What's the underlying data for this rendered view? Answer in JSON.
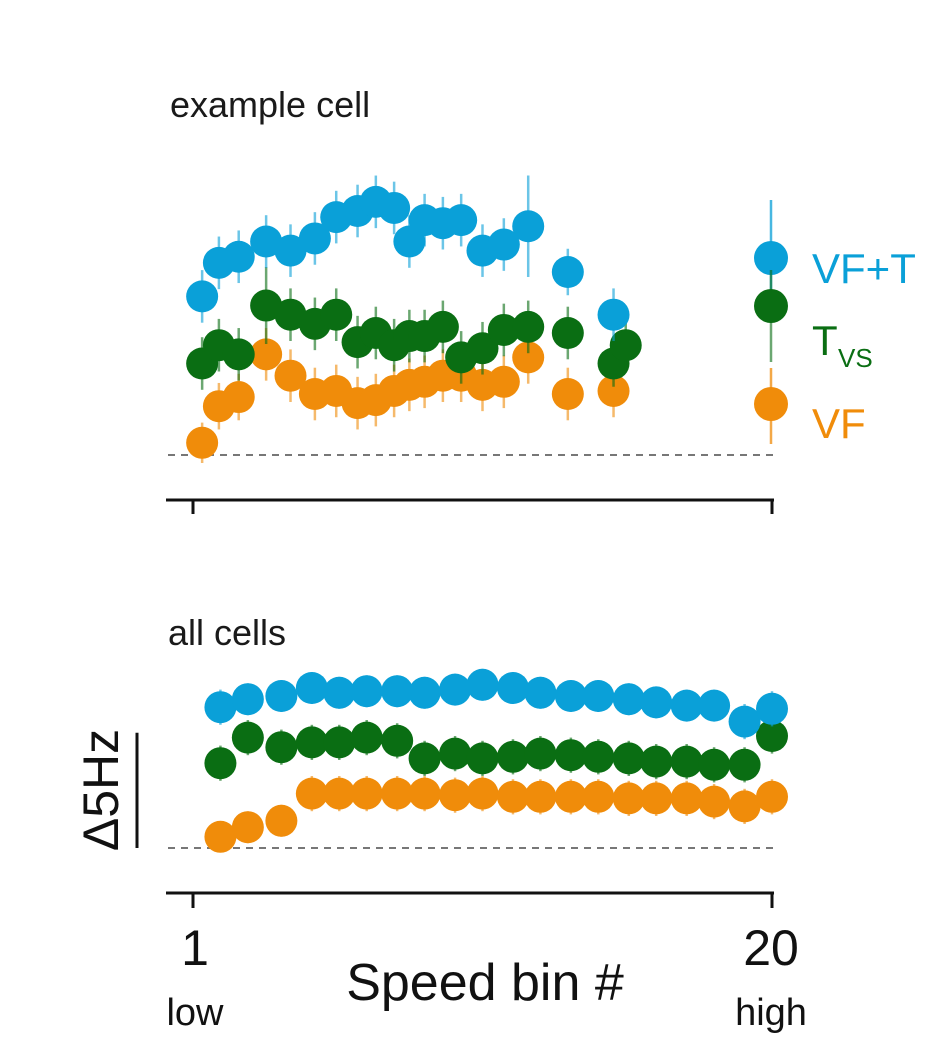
{
  "chart_data": [
    {
      "type": "scatter",
      "title": "example cell",
      "xlabel": "",
      "ylabel": "",
      "xlim": [
        1,
        20
      ],
      "ylim": [
        0,
        10
      ],
      "grid": false,
      "baseline": 0,
      "series": [
        {
          "name": "VF+T",
          "color": "#0aa0d8",
          "points": [
            {
              "x": 1.3,
              "y": 5.2,
              "err": 0.6
            },
            {
              "x": 1.85,
              "y": 6.3,
              "err": 0.6
            },
            {
              "x": 2.5,
              "y": 6.5,
              "err": 0.6
            },
            {
              "x": 3.4,
              "y": 7.0,
              "err": 0.6
            },
            {
              "x": 4.2,
              "y": 6.7,
              "err": 0.6
            },
            {
              "x": 5.0,
              "y": 7.1,
              "err": 0.6
            },
            {
              "x": 5.7,
              "y": 7.8,
              "err": 0.6
            },
            {
              "x": 6.4,
              "y": 8.0,
              "err": 0.6
            },
            {
              "x": 7.0,
              "y": 8.3,
              "err": 0.6
            },
            {
              "x": 7.6,
              "y": 8.1,
              "err": 0.6
            },
            {
              "x": 8.1,
              "y": 7.0,
              "err": 0.6
            },
            {
              "x": 8.6,
              "y": 7.7,
              "err": 0.6
            },
            {
              "x": 9.2,
              "y": 7.6,
              "err": 0.6
            },
            {
              "x": 9.8,
              "y": 7.7,
              "err": 0.6
            },
            {
              "x": 10.5,
              "y": 6.7,
              "err": 0.6
            },
            {
              "x": 11.2,
              "y": 6.9,
              "err": 0.6
            },
            {
              "x": 12.0,
              "y": 7.5,
              "err": 1.4
            },
            {
              "x": 13.3,
              "y": 6.0,
              "err": 0.5
            },
            {
              "x": 14.8,
              "y": 4.6,
              "err": 0.6
            }
          ]
        },
        {
          "name": "T",
          "name_sub": "VS",
          "color": "#0a6e13",
          "points": [
            {
              "x": 1.3,
              "y": 3.0,
              "err": 0.6
            },
            {
              "x": 1.85,
              "y": 3.6,
              "err": 0.6
            },
            {
              "x": 2.5,
              "y": 3.3,
              "err": 0.6
            },
            {
              "x": 3.4,
              "y": 4.9,
              "err": 1.0
            },
            {
              "x": 4.2,
              "y": 4.6,
              "err": 0.6
            },
            {
              "x": 5.0,
              "y": 4.3,
              "err": 0.6
            },
            {
              "x": 5.7,
              "y": 4.6,
              "err": 0.6
            },
            {
              "x": 6.4,
              "y": 3.7,
              "err": 0.6
            },
            {
              "x": 7.0,
              "y": 4.0,
              "err": 0.6
            },
            {
              "x": 7.6,
              "y": 3.6,
              "err": 0.6
            },
            {
              "x": 8.1,
              "y": 3.9,
              "err": 0.6
            },
            {
              "x": 8.6,
              "y": 3.9,
              "err": 0.6
            },
            {
              "x": 9.2,
              "y": 4.2,
              "err": 0.6
            },
            {
              "x": 9.8,
              "y": 3.2,
              "err": 0.6
            },
            {
              "x": 10.5,
              "y": 3.5,
              "err": 0.6
            },
            {
              "x": 11.2,
              "y": 4.1,
              "err": 0.6
            },
            {
              "x": 12.0,
              "y": 4.2,
              "err": 0.6
            },
            {
              "x": 13.3,
              "y": 4.0,
              "err": 0.6
            },
            {
              "x": 14.8,
              "y": 3.0,
              "err": 0.5
            },
            {
              "x": 15.2,
              "y": 3.6,
              "err": 0.6
            }
          ]
        },
        {
          "name": "VF",
          "color": "#f08c0a",
          "points": [
            {
              "x": 1.3,
              "y": 0.4,
              "err": 0.4
            },
            {
              "x": 1.85,
              "y": 1.6,
              "err": 0.5
            },
            {
              "x": 2.5,
              "y": 1.9,
              "err": 0.5
            },
            {
              "x": 3.4,
              "y": 3.3,
              "err": 0.6
            },
            {
              "x": 4.2,
              "y": 2.6,
              "err": 0.6
            },
            {
              "x": 5.0,
              "y": 2.0,
              "err": 0.6
            },
            {
              "x": 5.7,
              "y": 2.1,
              "err": 0.6
            },
            {
              "x": 6.4,
              "y": 1.7,
              "err": 0.6
            },
            {
              "x": 7.0,
              "y": 1.8,
              "err": 0.6
            },
            {
              "x": 7.6,
              "y": 2.1,
              "err": 0.6
            },
            {
              "x": 8.1,
              "y": 2.3,
              "err": 0.6
            },
            {
              "x": 8.6,
              "y": 2.4,
              "err": 0.6
            },
            {
              "x": 9.2,
              "y": 2.6,
              "err": 0.6
            },
            {
              "x": 9.8,
              "y": 2.6,
              "err": 0.6
            },
            {
              "x": 10.5,
              "y": 2.3,
              "err": 0.6
            },
            {
              "x": 11.2,
              "y": 2.4,
              "err": 0.6
            },
            {
              "x": 12.0,
              "y": 3.2,
              "err": 0.6
            },
            {
              "x": 13.3,
              "y": 2.0,
              "err": 0.6
            },
            {
              "x": 14.8,
              "y": 2.1,
              "err": 0.6
            }
          ]
        }
      ],
      "legend": {
        "placement": "right",
        "items": [
          {
            "label": "VF+T",
            "sub": "",
            "color": "#0aa0d8"
          },
          {
            "label": "T",
            "sub": "VS",
            "color": "#0a6e13"
          },
          {
            "label": "VF",
            "sub": "",
            "color": "#f08c0a"
          }
        ]
      }
    },
    {
      "type": "scatter",
      "title": "all cells",
      "xlabel": "Speed bin #",
      "ylabel": "",
      "xlim": [
        1,
        20
      ],
      "ylim": [
        0,
        10
      ],
      "grid": false,
      "baseline": 0,
      "scale_bar": {
        "label": "Δ5Hz",
        "value": 7.2
      },
      "x_ticks": [
        {
          "value": 1,
          "label": "1",
          "sublabel": "low"
        },
        {
          "value": 20,
          "label": "20",
          "sublabel": "high"
        }
      ],
      "series": [
        {
          "name": "VF+T",
          "color": "#0aa0d8",
          "points": [
            {
              "x": 1.9,
              "y": 8.8,
              "err": 0.6
            },
            {
              "x": 2.8,
              "y": 9.3,
              "err": 0.5
            },
            {
              "x": 3.9,
              "y": 9.5,
              "err": 0.5
            },
            {
              "x": 4.9,
              "y": 10.0,
              "err": 0.5
            },
            {
              "x": 5.8,
              "y": 9.7,
              "err": 0.5
            },
            {
              "x": 6.7,
              "y": 9.8,
              "err": 0.5
            },
            {
              "x": 7.7,
              "y": 9.8,
              "err": 0.5
            },
            {
              "x": 8.6,
              "y": 9.7,
              "err": 0.5
            },
            {
              "x": 9.6,
              "y": 9.9,
              "err": 0.5
            },
            {
              "x": 10.5,
              "y": 10.2,
              "err": 0.5
            },
            {
              "x": 11.5,
              "y": 10.0,
              "err": 0.5
            },
            {
              "x": 12.4,
              "y": 9.7,
              "err": 0.5
            },
            {
              "x": 13.4,
              "y": 9.5,
              "err": 0.5
            },
            {
              "x": 14.3,
              "y": 9.5,
              "err": 0.5
            },
            {
              "x": 15.3,
              "y": 9.3,
              "err": 0.5
            },
            {
              "x": 16.2,
              "y": 9.1,
              "err": 0.5
            },
            {
              "x": 17.2,
              "y": 8.9,
              "err": 0.5
            },
            {
              "x": 18.1,
              "y": 8.9,
              "err": 0.5
            },
            {
              "x": 19.1,
              "y": 7.9,
              "err": 0.6
            },
            {
              "x": 20.0,
              "y": 8.7,
              "err": 0.6
            }
          ]
        },
        {
          "name": "T",
          "name_sub": "VS",
          "color": "#0a6e13",
          "points": [
            {
              "x": 1.9,
              "y": 5.3,
              "err": 0.6
            },
            {
              "x": 2.8,
              "y": 6.9,
              "err": 0.6
            },
            {
              "x": 3.9,
              "y": 6.3,
              "err": 0.6
            },
            {
              "x": 4.9,
              "y": 6.6,
              "err": 0.6
            },
            {
              "x": 5.8,
              "y": 6.6,
              "err": 0.6
            },
            {
              "x": 6.7,
              "y": 6.9,
              "err": 0.6
            },
            {
              "x": 7.7,
              "y": 6.7,
              "err": 0.6
            },
            {
              "x": 8.6,
              "y": 5.6,
              "err": 0.6
            },
            {
              "x": 9.6,
              "y": 5.9,
              "err": 0.6
            },
            {
              "x": 10.5,
              "y": 5.6,
              "err": 0.6
            },
            {
              "x": 11.5,
              "y": 5.7,
              "err": 0.6
            },
            {
              "x": 12.4,
              "y": 5.9,
              "err": 0.6
            },
            {
              "x": 13.4,
              "y": 5.8,
              "err": 0.6
            },
            {
              "x": 14.3,
              "y": 5.7,
              "err": 0.6
            },
            {
              "x": 15.3,
              "y": 5.6,
              "err": 0.6
            },
            {
              "x": 16.2,
              "y": 5.4,
              "err": 0.6
            },
            {
              "x": 17.2,
              "y": 5.4,
              "err": 0.6
            },
            {
              "x": 18.1,
              "y": 5.2,
              "err": 0.6
            },
            {
              "x": 19.1,
              "y": 5.2,
              "err": 0.6
            },
            {
              "x": 20.0,
              "y": 7.0,
              "err": 0.6
            }
          ]
        },
        {
          "name": "VF",
          "color": "#f08c0a",
          "points": [
            {
              "x": 1.9,
              "y": 0.7,
              "err": 0.4
            },
            {
              "x": 2.8,
              "y": 1.3,
              "err": 0.5
            },
            {
              "x": 3.9,
              "y": 1.7,
              "err": 0.5
            },
            {
              "x": 4.9,
              "y": 3.4,
              "err": 0.6
            },
            {
              "x": 5.8,
              "y": 3.4,
              "err": 0.6
            },
            {
              "x": 6.7,
              "y": 3.4,
              "err": 0.6
            },
            {
              "x": 7.7,
              "y": 3.4,
              "err": 0.6
            },
            {
              "x": 8.6,
              "y": 3.4,
              "err": 0.6
            },
            {
              "x": 9.6,
              "y": 3.3,
              "err": 0.6
            },
            {
              "x": 10.5,
              "y": 3.4,
              "err": 0.6
            },
            {
              "x": 11.5,
              "y": 3.2,
              "err": 0.6
            },
            {
              "x": 12.4,
              "y": 3.2,
              "err": 0.6
            },
            {
              "x": 13.4,
              "y": 3.2,
              "err": 0.6
            },
            {
              "x": 14.3,
              "y": 3.2,
              "err": 0.6
            },
            {
              "x": 15.3,
              "y": 3.1,
              "err": 0.6
            },
            {
              "x": 16.2,
              "y": 3.1,
              "err": 0.6
            },
            {
              "x": 17.2,
              "y": 3.1,
              "err": 0.6
            },
            {
              "x": 18.1,
              "y": 2.9,
              "err": 0.6
            },
            {
              "x": 19.1,
              "y": 2.6,
              "err": 0.6
            },
            {
              "x": 20.0,
              "y": 3.2,
              "err": 0.6
            }
          ]
        }
      ]
    }
  ]
}
